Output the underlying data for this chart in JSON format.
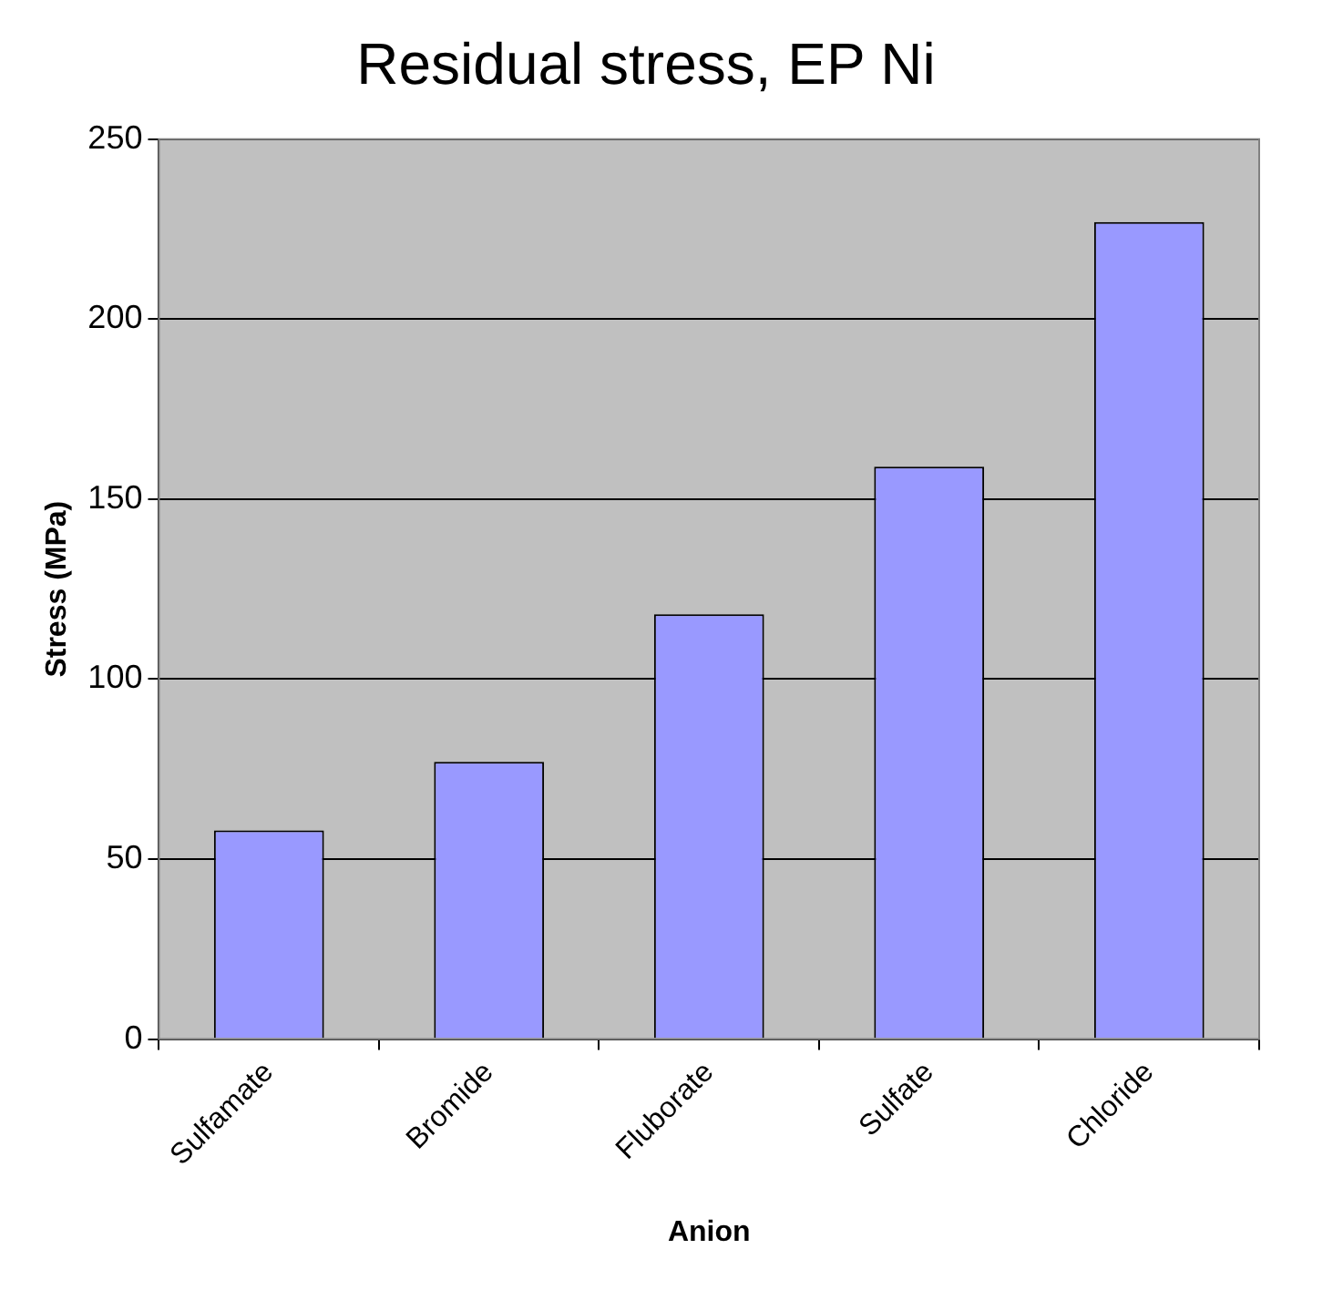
{
  "chart_data": {
    "type": "bar",
    "title": "Residual stress, EP Ni",
    "xlabel": "Anion",
    "ylabel": "Stress (MPa)",
    "categories": [
      "Sulfamate",
      "Bromide",
      "Fluborate",
      "Sulfate",
      "Chloride"
    ],
    "values": [
      58,
      77,
      118,
      159,
      227
    ],
    "color": "#9999ff",
    "ylim": [
      0,
      250
    ],
    "yticks": [
      0,
      50,
      100,
      150,
      200,
      250
    ],
    "grid": "y",
    "legend": false
  }
}
